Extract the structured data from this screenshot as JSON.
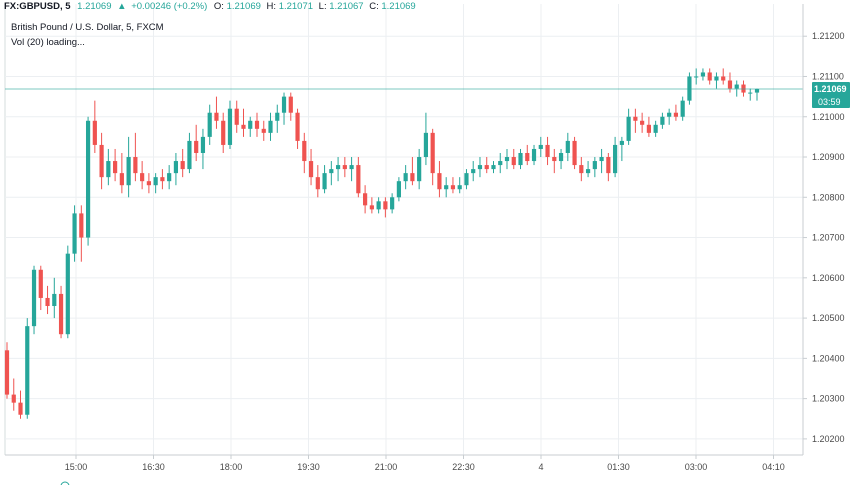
{
  "header": {
    "symbol": "FX:GBPUSD, 5",
    "last": "1.21069",
    "change": "+0.00246 (+0.2%)",
    "o_label": "O:",
    "o": "1.21069",
    "h_label": "H:",
    "h": "1.21071",
    "l_label": "L:",
    "l": "1.21067",
    "c_label": "C:",
    "c": "1.21069",
    "name": "British Pound / U.S. Dollar, 5, FXCM",
    "volume": "Vol (20) loading..."
  },
  "price_tag": {
    "value": "1.21069",
    "countdown": "03:59"
  },
  "colors": {
    "up": "#26a69a",
    "down": "#ef5350",
    "grid": "#eceff2",
    "last_line": "#26a69a"
  },
  "chart_data": {
    "type": "candlestick",
    "ylim": [
      1.2016,
      1.2128
    ],
    "y_ticks": [
      "1.21200",
      "1.21100",
      "1.21000",
      "1.20900",
      "1.20800",
      "1.20700",
      "1.20600",
      "1.20500",
      "1.20400",
      "1.20300",
      "1.20200"
    ],
    "x_ticks": [
      "15:00",
      "16:30",
      "18:00",
      "19:30",
      "21:00",
      "22:30",
      "4",
      "01:30",
      "03:00",
      "04:10"
    ],
    "candles": [
      [
        1.2042,
        1.2044,
        1.203,
        1.2031
      ],
      [
        1.2031,
        1.2035,
        1.2027,
        1.2029
      ],
      [
        1.2029,
        1.2032,
        1.2025,
        1.2026
      ],
      [
        1.2026,
        1.205,
        1.2025,
        1.2048
      ],
      [
        1.2048,
        1.2063,
        1.2046,
        1.2062
      ],
      [
        1.2062,
        1.2063,
        1.2052,
        1.2055
      ],
      [
        1.2055,
        1.2058,
        1.2051,
        1.2053
      ],
      [
        1.2053,
        1.206,
        1.205,
        1.2056
      ],
      [
        1.2056,
        1.2058,
        1.2045,
        1.2046
      ],
      [
        1.2046,
        1.2068,
        1.2045,
        1.2066
      ],
      [
        1.2066,
        1.2078,
        1.2064,
        1.2076
      ],
      [
        1.2076,
        1.2078,
        1.2064,
        1.207
      ],
      [
        1.207,
        1.21,
        1.2068,
        1.2099
      ],
      [
        1.2099,
        1.2104,
        1.2091,
        1.2093
      ],
      [
        1.2093,
        1.2096,
        1.2082,
        1.2085
      ],
      [
        1.2085,
        1.2092,
        1.2083,
        1.2089
      ],
      [
        1.2089,
        1.2092,
        1.2084,
        1.2086
      ],
      [
        1.2086,
        1.2091,
        1.2081,
        1.2083
      ],
      [
        1.2083,
        1.2095,
        1.208,
        1.209
      ],
      [
        1.209,
        1.2096,
        1.2084,
        1.2086
      ],
      [
        1.2086,
        1.2089,
        1.2082,
        1.2084
      ],
      [
        1.2084,
        1.2086,
        1.2081,
        1.2083
      ],
      [
        1.2083,
        1.2086,
        1.2081,
        1.2085
      ],
      [
        1.2085,
        1.2087,
        1.2082,
        1.2084
      ],
      [
        1.2084,
        1.2088,
        1.2082,
        1.2086
      ],
      [
        1.2086,
        1.2091,
        1.2083,
        1.2089
      ],
      [
        1.2089,
        1.2092,
        1.2085,
        1.2087
      ],
      [
        1.2087,
        1.2096,
        1.2086,
        1.2094
      ],
      [
        1.2094,
        1.2098,
        1.2089,
        1.2091
      ],
      [
        1.2091,
        1.2097,
        1.2087,
        1.2095
      ],
      [
        1.2095,
        1.2103,
        1.2093,
        1.2101
      ],
      [
        1.2101,
        1.2105,
        1.2097,
        1.2099
      ],
      [
        1.2099,
        1.2101,
        1.2091,
        1.2093
      ],
      [
        1.2093,
        1.2104,
        1.2092,
        1.2102
      ],
      [
        1.2102,
        1.2104,
        1.2096,
        1.2098
      ],
      [
        1.2098,
        1.2102,
        1.2095,
        1.2097
      ],
      [
        1.2097,
        1.21,
        1.2095,
        1.2099
      ],
      [
        1.2099,
        1.2101,
        1.2095,
        1.2097
      ],
      [
        1.2097,
        1.2099,
        1.2094,
        1.2096
      ],
      [
        1.2096,
        1.2101,
        1.2094,
        1.2099
      ],
      [
        1.2099,
        1.2103,
        1.2096,
        1.2101
      ],
      [
        1.2101,
        1.2106,
        1.2098,
        1.2105
      ],
      [
        1.2105,
        1.2106,
        1.2099,
        1.2101
      ],
      [
        1.2101,
        1.2102,
        1.2092,
        1.2094
      ],
      [
        1.2094,
        1.2096,
        1.2086,
        1.2089
      ],
      [
        1.2089,
        1.2092,
        1.2083,
        1.2085
      ],
      [
        1.2085,
        1.2088,
        1.208,
        1.2082
      ],
      [
        1.2082,
        1.2088,
        1.2081,
        1.2086
      ],
      [
        1.2086,
        1.2089,
        1.2083,
        1.2087
      ],
      [
        1.2087,
        1.209,
        1.2084,
        1.2088
      ],
      [
        1.2088,
        1.209,
        1.2085,
        1.2087
      ],
      [
        1.2087,
        1.209,
        1.2084,
        1.2088
      ],
      [
        1.2088,
        1.209,
        1.208,
        1.2081
      ],
      [
        1.2081,
        1.2083,
        1.2076,
        1.2078
      ],
      [
        1.2078,
        1.208,
        1.2076,
        1.2077
      ],
      [
        1.2077,
        1.208,
        1.2076,
        1.2079
      ],
      [
        1.2079,
        1.208,
        1.2075,
        1.2077
      ],
      [
        1.2077,
        1.2081,
        1.2076,
        1.208
      ],
      [
        1.208,
        1.2085,
        1.2079,
        1.2084
      ],
      [
        1.2084,
        1.2088,
        1.2082,
        1.2086
      ],
      [
        1.2086,
        1.209,
        1.2083,
        1.2084
      ],
      [
        1.2084,
        1.2092,
        1.2082,
        1.209
      ],
      [
        1.209,
        1.2101,
        1.2088,
        1.2096
      ],
      [
        1.2096,
        1.2097,
        1.2083,
        1.2086
      ],
      [
        1.2086,
        1.2089,
        1.208,
        1.2082
      ],
      [
        1.2082,
        1.2085,
        1.208,
        1.2083
      ],
      [
        1.2083,
        1.2085,
        1.2081,
        1.2082
      ],
      [
        1.2082,
        1.2085,
        1.2081,
        1.2083
      ],
      [
        1.2083,
        1.2087,
        1.2082,
        1.2086
      ],
      [
        1.2086,
        1.2089,
        1.2084,
        1.2087
      ],
      [
        1.2087,
        1.209,
        1.2085,
        1.2088
      ],
      [
        1.2088,
        1.209,
        1.2086,
        1.2087
      ],
      [
        1.2087,
        1.2089,
        1.2086,
        1.2088
      ],
      [
        1.2088,
        1.2091,
        1.2086,
        1.2089
      ],
      [
        1.2089,
        1.2092,
        1.2087,
        1.209
      ],
      [
        1.209,
        1.2092,
        1.2087,
        1.2088
      ],
      [
        1.2088,
        1.2092,
        1.2087,
        1.2091
      ],
      [
        1.2091,
        1.2093,
        1.2088,
        1.2089
      ],
      [
        1.2089,
        1.2093,
        1.2088,
        1.2092
      ],
      [
        1.2092,
        1.2095,
        1.209,
        1.2093
      ],
      [
        1.2093,
        1.2095,
        1.2088,
        1.209
      ],
      [
        1.209,
        1.2092,
        1.2086,
        1.2089
      ],
      [
        1.2089,
        1.2092,
        1.2087,
        1.2091
      ],
      [
        1.2091,
        1.2096,
        1.2089,
        1.2094
      ],
      [
        1.2094,
        1.2095,
        1.2087,
        1.2088
      ],
      [
        1.2088,
        1.209,
        1.2084,
        1.2086
      ],
      [
        1.2086,
        1.2089,
        1.2085,
        1.2087
      ],
      [
        1.2087,
        1.209,
        1.2085,
        1.2089
      ],
      [
        1.2089,
        1.2092,
        1.2086,
        1.209
      ],
      [
        1.209,
        1.2091,
        1.2084,
        1.2086
      ],
      [
        1.2086,
        1.2095,
        1.2085,
        1.2093
      ],
      [
        1.2093,
        1.2095,
        1.2089,
        1.2094
      ],
      [
        1.2094,
        1.2102,
        1.2093,
        1.21
      ],
      [
        1.21,
        1.2102,
        1.2096,
        1.2099
      ],
      [
        1.2099,
        1.2101,
        1.2096,
        1.2098
      ],
      [
        1.2098,
        1.21,
        1.2095,
        1.2096
      ],
      [
        1.2096,
        1.2099,
        1.2095,
        1.2098
      ],
      [
        1.2098,
        1.2101,
        1.2097,
        1.21
      ],
      [
        1.21,
        1.2102,
        1.2098,
        1.2101
      ],
      [
        1.2101,
        1.2103,
        1.2099,
        1.21
      ],
      [
        1.21,
        1.2105,
        1.2099,
        1.2104
      ],
      [
        1.2104,
        1.2111,
        1.2103,
        1.211
      ],
      [
        1.211,
        1.2112,
        1.2108,
        1.211
      ],
      [
        1.211,
        1.2112,
        1.2109,
        1.2111
      ],
      [
        1.2111,
        1.2112,
        1.2108,
        1.2109
      ],
      [
        1.2109,
        1.2111,
        1.2107,
        1.211
      ],
      [
        1.211,
        1.2112,
        1.2108,
        1.2109
      ],
      [
        1.2109,
        1.2111,
        1.2106,
        1.2107
      ],
      [
        1.2107,
        1.2109,
        1.2105,
        1.2108
      ],
      [
        1.2108,
        1.2109,
        1.2105,
        1.2106
      ],
      [
        1.2106,
        1.2107,
        1.2104,
        1.2106
      ],
      [
        1.2106,
        1.2107,
        1.2104,
        1.21069
      ]
    ]
  }
}
